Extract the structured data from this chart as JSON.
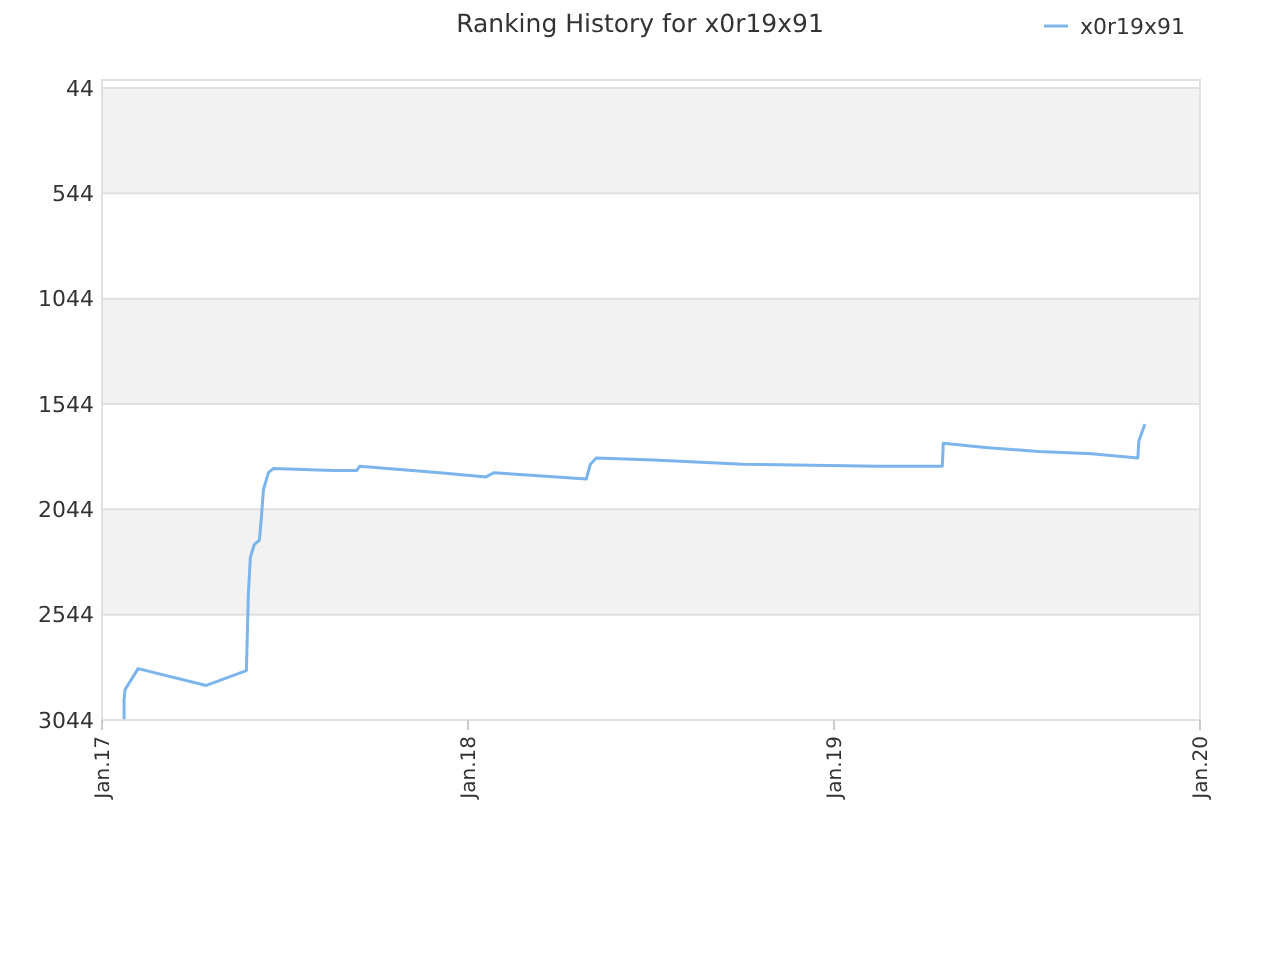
{
  "chart_data": {
    "type": "line",
    "title": "Ranking History for x0r19x91",
    "x": [
      "2017-01-23",
      "2017-01-23",
      "2017-01-24",
      "2017-02-06",
      "2017-04-15",
      "2017-05-25",
      "2017-05-27",
      "2017-05-29",
      "2017-06-02",
      "2017-06-07",
      "2017-06-09",
      "2017-06-11",
      "2017-06-16",
      "2017-06-21",
      "2017-08-20",
      "2017-09-12",
      "2017-09-15",
      "2017-12-04",
      "2018-01-19",
      "2018-01-27",
      "2018-04-29",
      "2018-05-03",
      "2018-05-09",
      "2018-07-05",
      "2018-10-02",
      "2019-02-14",
      "2019-04-19",
      "2019-04-20",
      "2019-06-01",
      "2019-07-24",
      "2019-09-15",
      "2019-10-31",
      "2019-11-01",
      "2019-11-07"
    ],
    "series": [
      {
        "name": "x0r19x91",
        "color": "#7cb5ec",
        "values": [
          3040,
          2950,
          2900,
          2800,
          2880,
          2810,
          2440,
          2270,
          2210,
          2190,
          2080,
          1950,
          1870,
          1850,
          1860,
          1860,
          1840,
          1870,
          1890,
          1870,
          1900,
          1830,
          1800,
          1810,
          1830,
          1840,
          1840,
          1730,
          1750,
          1770,
          1780,
          1800,
          1720,
          1640
        ]
      }
    ],
    "xlim": [
      "2017-01-01",
      "2020-01-01"
    ],
    "xticks": [
      {
        "value": "2017-01-01",
        "label": "Jan.17"
      },
      {
        "value": "2018-01-01",
        "label": "Jan.18"
      },
      {
        "value": "2019-01-01",
        "label": "Jan.19"
      },
      {
        "value": "2020-01-01",
        "label": "Jan.20"
      }
    ],
    "ylim": [
      3044,
      6
    ],
    "yticks": [
      44,
      544,
      1044,
      1544,
      2044,
      2544,
      3044
    ],
    "grid": "y",
    "legend": "top right",
    "marker": "none",
    "line_style": "solid"
  }
}
